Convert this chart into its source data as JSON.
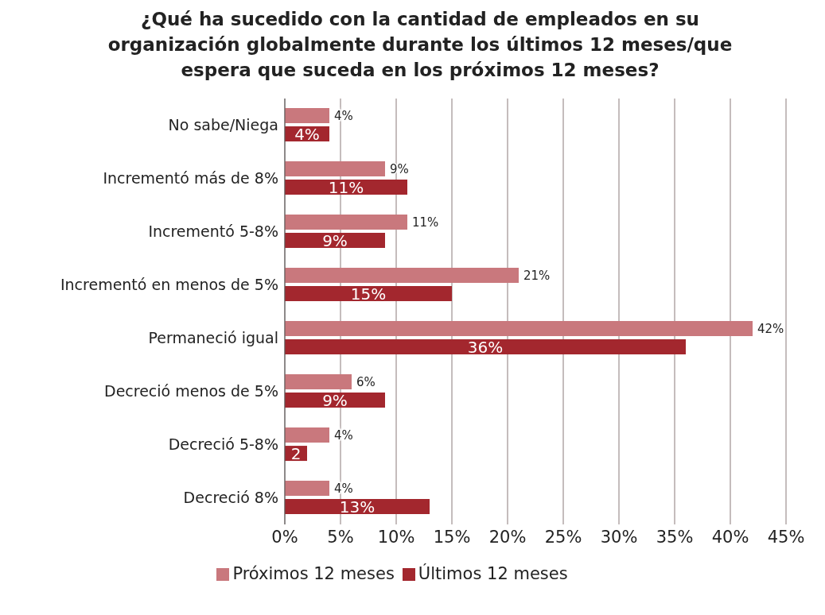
{
  "chart_data": {
    "type": "bar",
    "orientation": "horizontal",
    "title": "¿Qué ha sucedido con la cantidad de empleados en su organización globalmente durante los últimos 12 meses/que espera que suceda en los próximos 12 meses?",
    "categories": [
      "No sabe/Niega",
      "Incrementó más de 8%",
      "Incrementó 5-8%",
      "Incrementó en menos de 5%",
      "Permaneció igual",
      "Decreció menos de 5%",
      "Decreció 5-8%",
      "Decreció 8%"
    ],
    "series": [
      {
        "name": "Próximos 12 meses",
        "color": "#c9787d",
        "values": [
          4,
          9,
          11,
          21,
          42,
          6,
          4,
          4
        ],
        "value_labels": [
          "4%",
          "9%",
          "11%",
          "21%",
          "42%",
          "6%",
          "4%",
          "4%"
        ]
      },
      {
        "name": "Últimos 12 meses",
        "color": "#a3272e",
        "values": [
          4,
          11,
          9,
          15,
          36,
          9,
          2,
          13
        ],
        "value_labels": [
          "4%",
          "11%",
          "9%",
          "15%",
          "36%",
          "9%",
          "2",
          "13%"
        ]
      }
    ],
    "xlim": [
      0,
      45
    ],
    "xticks": [
      {
        "value": 0,
        "label": "0%"
      },
      {
        "value": 5,
        "label": "5%"
      },
      {
        "value": 10,
        "label": "10%"
      },
      {
        "value": 15,
        "label": "15%"
      },
      {
        "value": 20,
        "label": "20%"
      },
      {
        "value": 25,
        "label": "25%"
      },
      {
        "value": 30,
        "label": "30%"
      },
      {
        "value": 35,
        "label": "35%"
      },
      {
        "value": 40,
        "label": "40%"
      },
      {
        "value": 45,
        "label": "45%"
      }
    ],
    "grid": "x",
    "legend": "bottom"
  }
}
